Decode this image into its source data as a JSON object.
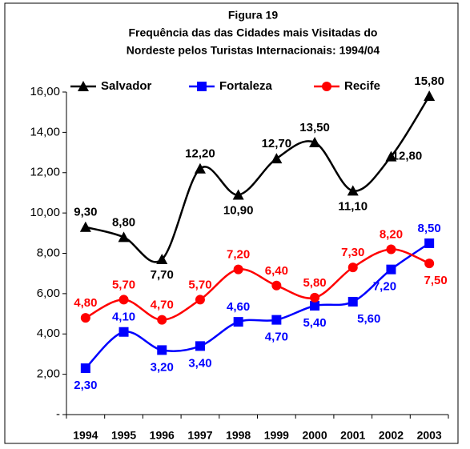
{
  "chart_data": {
    "type": "line",
    "title": [
      "Figura 19",
      "Frequência das das Cidades mais Visitadas do",
      "Nordeste pelos Turistas Internacionais: 1994/04"
    ],
    "categories": [
      "1994",
      "1995",
      "1996",
      "1997",
      "1998",
      "1999",
      "2000",
      "2001",
      "2002",
      "2003"
    ],
    "series": [
      {
        "name": "Salvador",
        "color": "#000000",
        "marker": "triangle",
        "values": [
          9.3,
          8.8,
          7.7,
          12.2,
          10.9,
          12.7,
          13.5,
          11.1,
          12.8,
          15.8
        ],
        "value_labels": [
          "9,30",
          "8,80",
          "7,70",
          "12,20",
          "10,90",
          "12,70",
          "13,50",
          "11,10",
          "12,80",
          "15,80"
        ]
      },
      {
        "name": "Fortaleza",
        "color": "#0000ff",
        "marker": "square",
        "values": [
          2.3,
          4.1,
          3.2,
          3.4,
          4.6,
          4.7,
          5.4,
          5.6,
          7.2,
          8.5
        ],
        "value_labels": [
          "2,30",
          "4,10",
          "3,20",
          "3,40",
          "4,60",
          "4,70",
          "5,40",
          "5,60",
          "7,20",
          "8,50"
        ]
      },
      {
        "name": "Recife",
        "color": "#ff0000",
        "marker": "circle",
        "values": [
          4.8,
          5.7,
          4.7,
          5.7,
          7.2,
          6.4,
          5.8,
          7.3,
          8.2,
          7.5
        ],
        "value_labels": [
          "4,80",
          "5,70",
          "4,70",
          "5,70",
          "7,20",
          "6,40",
          "5,80",
          "7,30",
          "8,20",
          "7,50"
        ]
      }
    ],
    "ylim": [
      0,
      16
    ],
    "yticks": [
      {
        "value": 0,
        "label": "-"
      },
      {
        "value": 2,
        "label": "2,00"
      },
      {
        "value": 4,
        "label": "4,00"
      },
      {
        "value": 6,
        "label": "6,00"
      },
      {
        "value": 8,
        "label": "8,00"
      },
      {
        "value": 10,
        "label": "10,00"
      },
      {
        "value": 12,
        "label": "12,00"
      },
      {
        "value": 14,
        "label": "14,00"
      },
      {
        "value": 16,
        "label": "16,00"
      }
    ],
    "smooth": true,
    "legend": "top"
  }
}
